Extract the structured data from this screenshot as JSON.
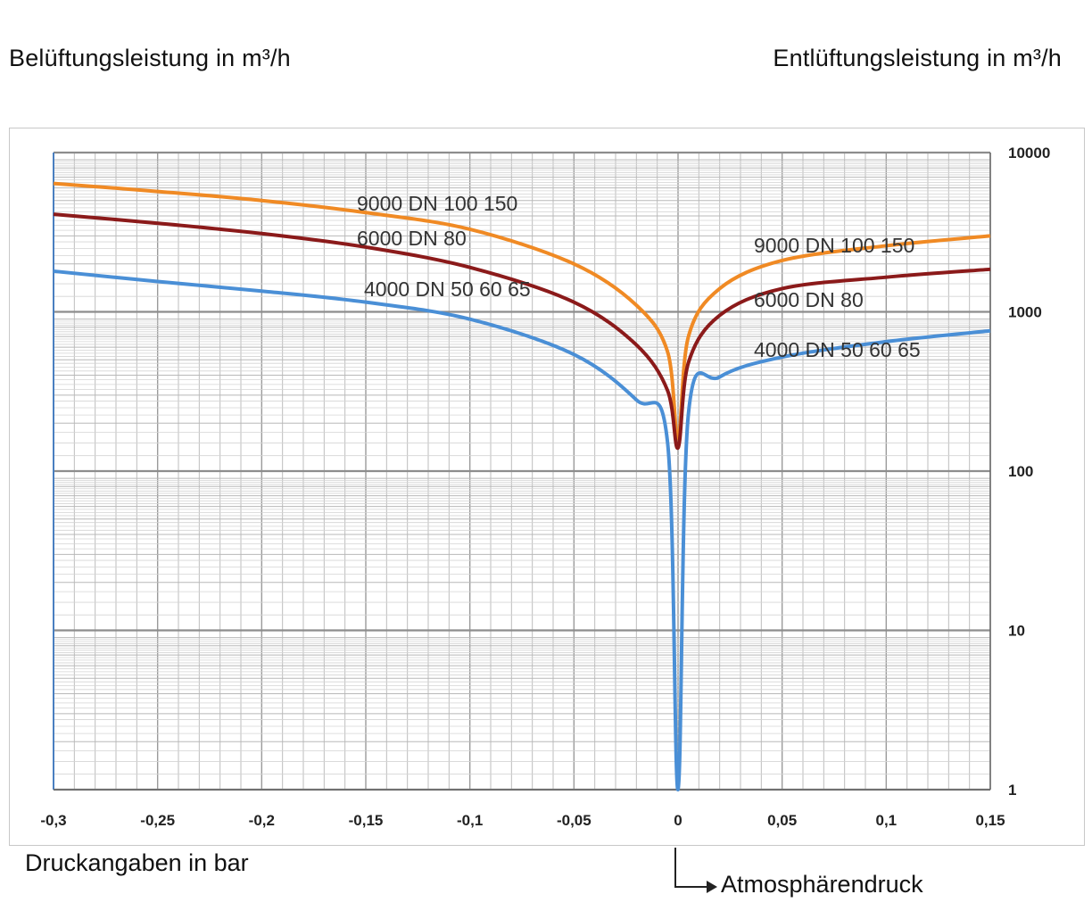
{
  "left_title": "Belüftungsleistung in m³/h",
  "right_title": "Entlüftungsleistung in m³/h",
  "xlabel": "Druckangaben in bar",
  "annotation": "Atmosphärendruck",
  "chart_data": {
    "type": "line",
    "x_scale": "linear",
    "y_scale": "log",
    "xlim": [
      -0.3,
      0.15
    ],
    "ylim": [
      1,
      10000
    ],
    "x_ticks": [
      "-0,3",
      "-0,25",
      "-0,2",
      "-0,15",
      "-0,1",
      "-0,05",
      "0",
      "0,05",
      "0,1",
      "0,15"
    ],
    "y_ticks": [
      "1",
      "10",
      "100",
      "1000",
      "10000"
    ],
    "grid": true,
    "colors": {
      "9000 DN 100 150": "#f08a24",
      "6000 DN 80": "#8b1a1a",
      "4000 DN 50 60 65": "#4a8fd6"
    },
    "series": [
      {
        "name": "9000 DN 100 150",
        "points": [
          [
            -0.3,
            6400
          ],
          [
            -0.25,
            5700
          ],
          [
            -0.2,
            5000
          ],
          [
            -0.15,
            4200
          ],
          [
            -0.1,
            3300
          ],
          [
            -0.05,
            2000
          ],
          [
            -0.02,
            1100
          ],
          [
            -0.005,
            560
          ],
          [
            0,
            160
          ],
          [
            0.005,
            700
          ],
          [
            0.02,
            1400
          ],
          [
            0.05,
            2100
          ],
          [
            0.1,
            2600
          ],
          [
            0.15,
            3000
          ]
        ]
      },
      {
        "name": "6000 DN 80",
        "points": [
          [
            -0.3,
            4100
          ],
          [
            -0.25,
            3600
          ],
          [
            -0.2,
            3100
          ],
          [
            -0.15,
            2550
          ],
          [
            -0.1,
            1900
          ],
          [
            -0.05,
            1150
          ],
          [
            -0.02,
            620
          ],
          [
            -0.005,
            320
          ],
          [
            0,
            140
          ],
          [
            0.005,
            480
          ],
          [
            0.02,
            950
          ],
          [
            0.05,
            1400
          ],
          [
            0.1,
            1650
          ],
          [
            0.15,
            1850
          ]
        ]
      },
      {
        "name": "4000 DN 50 60 65",
        "points": [
          [
            -0.3,
            1800
          ],
          [
            -0.25,
            1550
          ],
          [
            -0.2,
            1350
          ],
          [
            -0.15,
            1150
          ],
          [
            -0.1,
            900
          ],
          [
            -0.05,
            540
          ],
          [
            -0.02,
            280
          ],
          [
            -0.005,
            150
          ],
          [
            0,
            1
          ],
          [
            0.005,
            230
          ],
          [
            0.02,
            390
          ],
          [
            0.05,
            520
          ],
          [
            0.1,
            650
          ],
          [
            0.15,
            760
          ]
        ]
      }
    ],
    "labels_left": [
      "9000 DN 100 150",
      "6000 DN 80",
      "4000 DN 50 60 65"
    ],
    "labels_right": [
      "9000 DN 100 150",
      "6000 DN 80",
      "4000 DN 50 60 65"
    ]
  }
}
